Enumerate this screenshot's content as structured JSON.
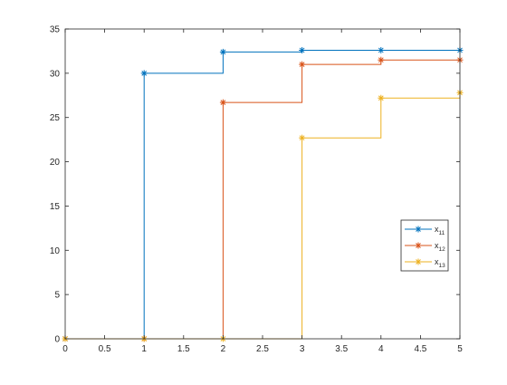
{
  "chart_data": {
    "type": "line",
    "style": "step",
    "title": "",
    "xlabel": "",
    "ylabel": "",
    "xlim": [
      0,
      5
    ],
    "ylim": [
      0,
      35
    ],
    "xticks": [
      0,
      0.5,
      1,
      1.5,
      2,
      2.5,
      3,
      3.5,
      4,
      4.5,
      5
    ],
    "xtick_labels": [
      "0",
      "0.5",
      "1",
      "1.5",
      "2",
      "2.5",
      "3",
      "3.5",
      "4",
      "4.5",
      "5"
    ],
    "yticks": [
      0,
      5,
      10,
      15,
      20,
      25,
      30,
      35
    ],
    "ytick_labels": [
      "0",
      "5",
      "10",
      "15",
      "20",
      "25",
      "30",
      "35"
    ],
    "grid": false,
    "legend_position": "lower-right",
    "marker": "asterisk",
    "x": [
      0,
      1,
      2,
      3,
      4,
      5
    ],
    "series": [
      {
        "name": "x",
        "subscript": "11",
        "color": "#0072BD",
        "values": [
          0,
          30.0,
          32.4,
          32.6,
          32.6,
          32.6
        ]
      },
      {
        "name": "x",
        "subscript": "12",
        "color": "#D95319",
        "values": [
          0,
          0,
          26.7,
          31.0,
          31.5,
          31.5
        ]
      },
      {
        "name": "x",
        "subscript": "13",
        "color": "#EDB120",
        "values": [
          0,
          0,
          0,
          22.7,
          27.2,
          27.8
        ]
      }
    ]
  }
}
